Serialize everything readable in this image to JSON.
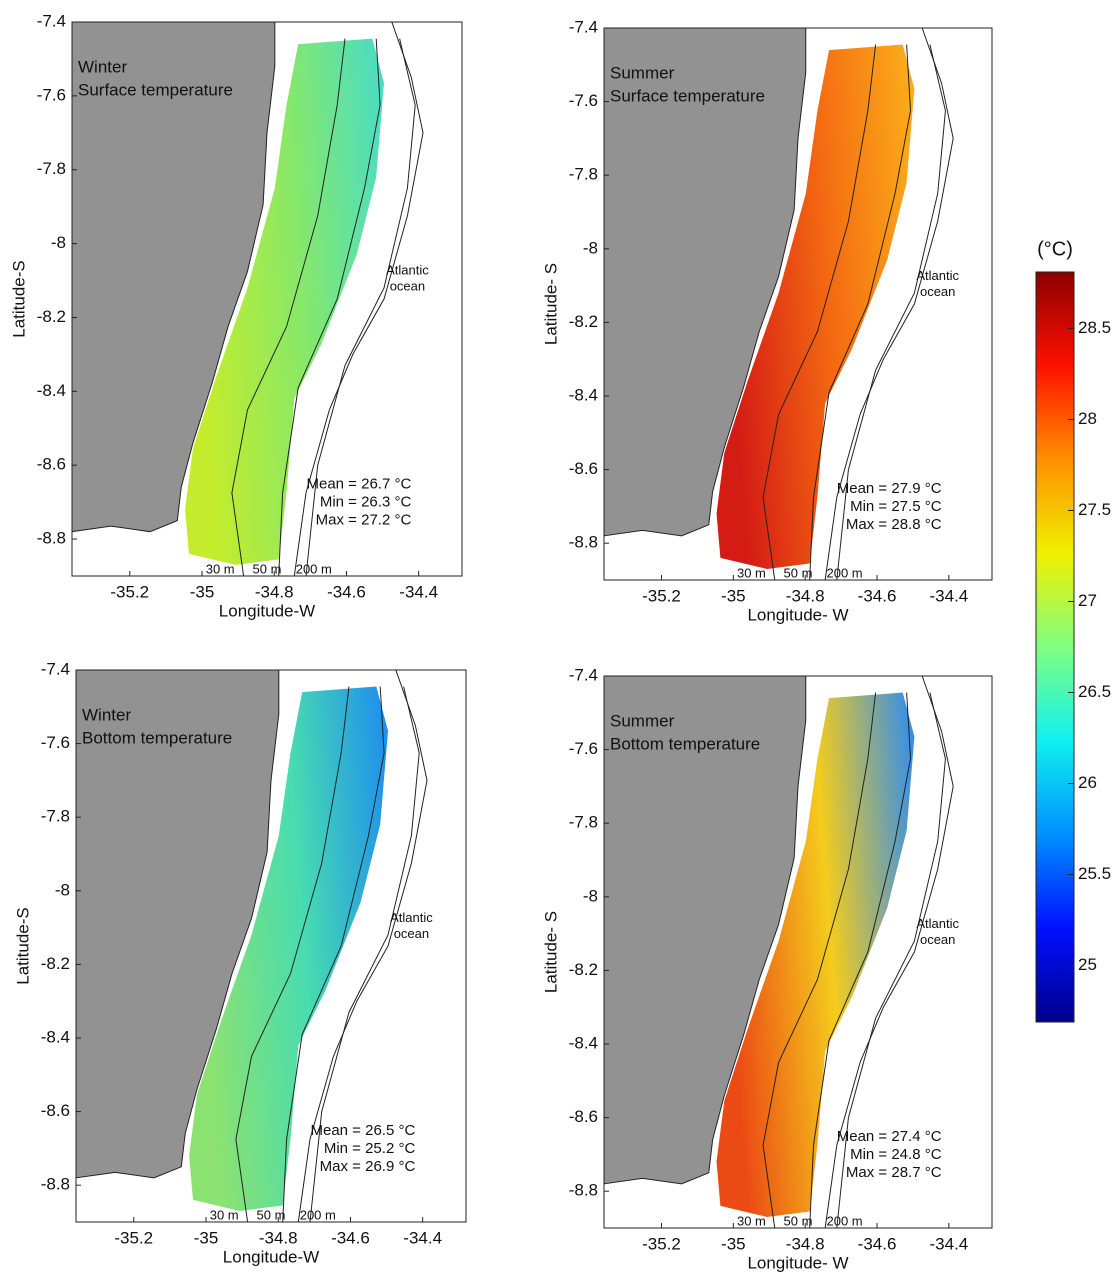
{
  "chart_data": [
    {
      "type": "map",
      "title": [
        "Winter",
        "Surface temperature"
      ],
      "xlabel": "Longitude-W",
      "ylabel": "Latitude-S",
      "xlim": [
        -35.36,
        -34.28
      ],
      "ylim": [
        -8.9,
        -7.4
      ],
      "xticks": [
        -35.2,
        -35,
        -34.8,
        -34.6,
        -34.4
      ],
      "yticks": [
        -7.4,
        -7.6,
        -7.8,
        -8,
        -8.2,
        -8.4,
        -8.6,
        -8.8
      ],
      "stats": [
        "Mean = 26.7 °C",
        "Min = 26.3 °C",
        "Max = 27.2 °C"
      ],
      "ocean_label": [
        "Atlantic",
        "ocean"
      ],
      "isobaths": [
        "30 m",
        "50 m",
        "200 m"
      ],
      "field_colors": [
        "#c4ec2c",
        "#88e868",
        "#48dcc8"
      ]
    },
    {
      "type": "map",
      "title": [
        "Summer",
        "Surface temperature"
      ],
      "xlabel": "Longitude- W",
      "ylabel": "Latitude- S",
      "xlim": [
        -35.36,
        -34.28
      ],
      "ylim": [
        -8.9,
        -7.4
      ],
      "xticks": [
        -35.2,
        -35,
        -34.8,
        -34.6,
        -34.4
      ],
      "yticks": [
        -7.4,
        -7.6,
        -7.8,
        -8,
        -8.2,
        -8.4,
        -8.6,
        -8.8
      ],
      "stats": [
        "Mean = 27.9 °C",
        "Min = 27.5 °C",
        "Max = 28.8 °C"
      ],
      "ocean_label": [
        "Atlantic",
        "ocean"
      ],
      "isobaths": [
        "30 m",
        "50 m",
        "200 m"
      ],
      "field_colors": [
        "#d41c14",
        "#f46a12",
        "#fcb01a"
      ]
    },
    {
      "type": "map",
      "title": [
        "Winter",
        "Bottom temperature"
      ],
      "xlabel": "Longitude-W",
      "ylabel": "Latitude-S",
      "xlim": [
        -35.36,
        -34.28
      ],
      "ylim": [
        -8.9,
        -7.4
      ],
      "xticks": [
        -35.2,
        -35,
        -34.8,
        -34.6,
        -34.4
      ],
      "yticks": [
        -7.4,
        -7.6,
        -7.8,
        -8,
        -8.2,
        -8.4,
        -8.6,
        -8.8
      ],
      "stats": [
        "Mean = 26.5 °C",
        "Min = 25.2 °C",
        "Max = 26.9 °C"
      ],
      "ocean_label": [
        "Atlantic",
        "ocean"
      ],
      "isobaths": [
        "30 m",
        "50 m",
        "200 m"
      ],
      "field_colors": [
        "#8ce270",
        "#48dcb0",
        "#1c8cf0"
      ]
    },
    {
      "type": "map",
      "title": [
        "Summer",
        "Bottom temperature"
      ],
      "xlabel": "Longitude- W",
      "ylabel": "Latitude- S",
      "xlim": [
        -35.36,
        -34.28
      ],
      "ylim": [
        -8.9,
        -7.4
      ],
      "xticks": [
        -35.2,
        -35,
        -34.8,
        -34.6,
        -34.4
      ],
      "yticks": [
        -7.4,
        -7.6,
        -7.8,
        -8,
        -8.2,
        -8.4,
        -8.6,
        -8.8
      ],
      "stats": [
        "Mean = 27.4 °C",
        "Min = 24.8 °C",
        "Max = 28.7 °C"
      ],
      "ocean_label": [
        "Atlantic",
        "ocean"
      ],
      "isobaths": [
        "30 m",
        "50 m",
        "200 m"
      ],
      "field_colors": [
        "#ec4a14",
        "#f4cc1c",
        "#2c8cf4"
      ]
    },
    {
      "type": "colorbar",
      "label": "(°C)",
      "lim": [
        24.69,
        28.81
      ],
      "ticks": [
        25,
        25.5,
        26,
        26.5,
        27,
        27.5,
        28,
        28.5
      ],
      "colors": [
        "#00008c",
        "#0010ff",
        "#0090ff",
        "#10f0f0",
        "#80ff80",
        "#f0f000",
        "#ff9000",
        "#ff1000",
        "#8c0000"
      ]
    }
  ]
}
